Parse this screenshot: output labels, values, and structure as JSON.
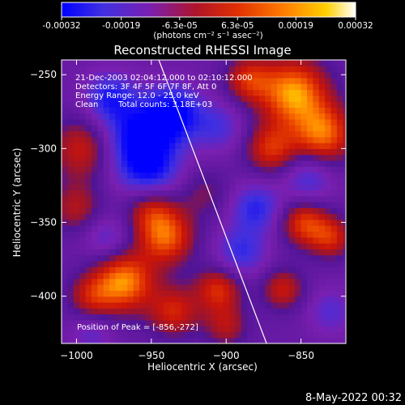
{
  "colorbar": {
    "ticks": [
      "-0.00032",
      "-0.00019",
      "-6.3e-05",
      "6.3e-05",
      "0.00019",
      "0.00032"
    ],
    "tick_values": [
      -0.00032,
      -0.00019,
      -6.3e-05,
      6.3e-05,
      0.00019,
      0.00032
    ],
    "range": [
      -0.00032,
      0.00032
    ],
    "units": "(photons cm⁻² s⁻¹ asec⁻²)",
    "colors": [
      "#0000ff",
      "#4030e0",
      "#7a1fb0",
      "#b01428",
      "#e03000",
      "#ff7a00",
      "#ffd000",
      "#ffffff"
    ]
  },
  "annotations": {
    "line1": "21-Dec-2003 02:04:12.000 to 02:10:12.000",
    "line2": "Detectors: 3F 4F 5F 6F 7F 8F, Att 0",
    "line3": "Energy Range: 12.0 - 25.0 keV",
    "line4_a": "Clean",
    "line4_b": "Total counts: 3.18E+03",
    "peak": "Position of Peak = [-856,-272]"
  },
  "timestamp": "8-May-2022 00:32",
  "chart_data": {
    "type": "heatmap",
    "title": "Reconstructed RHESSI Image",
    "xlabel": "Heliocentric X (arcsec)",
    "ylabel": "Heliocentric Y (arcsec)",
    "xlim": [
      -1010,
      -820
    ],
    "ylim": [
      -432,
      -240
    ],
    "xticks": [
      -1000,
      -950,
      -900,
      -850
    ],
    "yticks": [
      -250,
      -300,
      -350,
      -400
    ],
    "grid": false,
    "limb_line": {
      "x": [
        -945,
        -873
      ],
      "y": [
        -240,
        -432
      ]
    },
    "peak": {
      "x": -856,
      "y": -272
    },
    "blobs": [
      {
        "x": -855,
        "y": -262,
        "v": 1.0,
        "s": 16
      },
      {
        "x": -835,
        "y": -290,
        "v": 0.85,
        "s": 14
      },
      {
        "x": -870,
        "y": -300,
        "v": 0.65,
        "s": 12
      },
      {
        "x": -885,
        "y": -253,
        "v": 0.6,
        "s": 11
      },
      {
        "x": -995,
        "y": -300,
        "v": 0.6,
        "s": 15
      },
      {
        "x": -1000,
        "y": -340,
        "v": 0.45,
        "s": 12
      },
      {
        "x": -968,
        "y": -390,
        "v": 0.95,
        "s": 14
      },
      {
        "x": -940,
        "y": -360,
        "v": 0.8,
        "s": 13
      },
      {
        "x": -950,
        "y": -340,
        "v": 0.6,
        "s": 12
      },
      {
        "x": -990,
        "y": -400,
        "v": 0.5,
        "s": 11
      },
      {
        "x": -935,
        "y": -410,
        "v": 0.6,
        "s": 12
      },
      {
        "x": -905,
        "y": -395,
        "v": 0.65,
        "s": 11
      },
      {
        "x": -900,
        "y": -420,
        "v": 0.45,
        "s": 10
      },
      {
        "x": -848,
        "y": -350,
        "v": 0.7,
        "s": 11
      },
      {
        "x": -830,
        "y": -360,
        "v": 0.6,
        "s": 10
      },
      {
        "x": -862,
        "y": -395,
        "v": 0.55,
        "s": 10
      },
      {
        "x": -915,
        "y": -330,
        "v": 0.3,
        "s": 12
      },
      {
        "x": -958,
        "y": -295,
        "v": -0.85,
        "s": 18
      },
      {
        "x": -935,
        "y": -275,
        "v": -0.7,
        "s": 13
      },
      {
        "x": -978,
        "y": -265,
        "v": -0.55,
        "s": 12
      },
      {
        "x": -950,
        "y": -320,
        "v": -0.45,
        "s": 14
      },
      {
        "x": -880,
        "y": -340,
        "v": -0.55,
        "s": 12
      },
      {
        "x": -890,
        "y": -370,
        "v": -0.5,
        "s": 12
      },
      {
        "x": -845,
        "y": -320,
        "v": -0.45,
        "s": 12
      },
      {
        "x": -905,
        "y": -285,
        "v": -0.4,
        "s": 12
      },
      {
        "x": -830,
        "y": -410,
        "v": -0.35,
        "s": 11
      },
      {
        "x": -990,
        "y": -425,
        "v": -0.3,
        "s": 10
      },
      {
        "x": -980,
        "y": -360,
        "v": -0.35,
        "s": 11
      }
    ]
  }
}
